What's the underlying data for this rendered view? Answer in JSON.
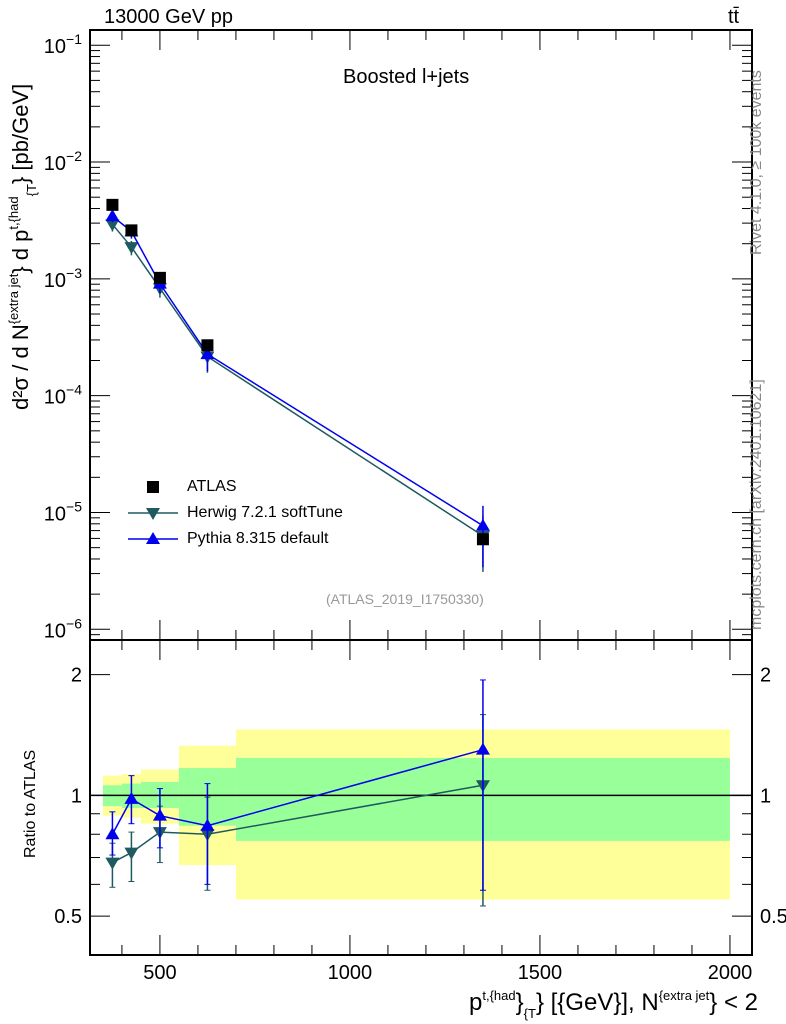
{
  "header": {
    "energy": "13000 GeV pp",
    "process": "tt̄"
  },
  "side": {
    "rivet": "Rivet 4.1.0, ≥ 100k events",
    "mcplots": "mcplots.cern.ch [arXiv:2401.10621]"
  },
  "colors": {
    "atlas": "#000000",
    "herwig": "#1e5a60",
    "pythia": "#0000ee",
    "band_inner": "#99ff99",
    "band_outer": "#ffff99"
  },
  "chart_data": [
    {
      "type": "line",
      "title": "Boosted l+jets",
      "analysis": "(ATLAS_2019_I1750330)",
      "ylabel": {
        "main": "d²σ / d N",
        "sup1": "{extra jet",
        "mid": "} d p",
        "sup2": "t,{had",
        "sub2": "{T",
        "end": "} [pb/GeV]"
      },
      "yscale": "log",
      "ylim": [
        8.1e-07,
        0.135
      ],
      "xlim": [
        316,
        2058
      ],
      "yticks": [
        {
          "v": 0.1,
          "b": "10",
          "e": "−1"
        },
        {
          "v": 0.01,
          "b": "10",
          "e": "−2"
        },
        {
          "v": 0.001,
          "b": "10",
          "e": "−3"
        },
        {
          "v": 0.0001,
          "b": "10",
          "e": "−4"
        },
        {
          "v": 1e-05,
          "b": "10",
          "e": "−5"
        },
        {
          "v": 1e-06,
          "b": "10",
          "e": "−6"
        }
      ],
      "legend_position": "bottom-left",
      "x": [
        375,
        425,
        500,
        625,
        1350
      ],
      "series": [
        {
          "name": "ATLAS",
          "marker": "square",
          "values": [
            0.0043,
            0.0026,
            0.00102,
            0.00027,
            5.9e-06
          ]
        },
        {
          "name": "Herwig 7.2.1 softTune",
          "marker": "triangle-down",
          "values": [
            0.00293,
            0.00187,
            0.00083,
            0.000216,
            6.3e-06
          ],
          "err_lo": [
            0.00254,
            0.00159,
            0.00069,
            0.000157,
            3.1e-06
          ],
          "err_hi": [
            0.00327,
            0.00211,
            0.00096,
            0.000267,
            9.4e-06
          ]
        },
        {
          "name": "Pythia 8.315 default",
          "marker": "triangle-up",
          "values": [
            0.00344,
            0.00255,
            0.00091,
            0.000227,
            7.7e-06
          ],
          "err_lo": [
            0.00305,
            0.00221,
            0.00075,
            0.000162,
            3.4e-06
          ],
          "err_hi": [
            0.00391,
            0.00291,
            0.00106,
            0.000289,
            1.14e-05
          ]
        }
      ]
    },
    {
      "type": "line",
      "ylabel": "Ratio to ATLAS",
      "xlabel": {
        "p": "p",
        "sup1": "t,{had",
        "mid1": "}",
        "sub1": "{T",
        "mid2": "} [{GeV}], N",
        "sup2": "{extra jet",
        "end": "} < 2"
      },
      "yscale": "log",
      "ylim": [
        0.4,
        2.44
      ],
      "xlim": [
        316,
        2058
      ],
      "yticks": [
        {
          "v": 0.5,
          "label": "0.5"
        },
        {
          "v": 1,
          "label": "1"
        },
        {
          "v": 2,
          "label": "2"
        }
      ],
      "xticks": [
        {
          "v": 500,
          "label": "500"
        },
        {
          "v": 1000,
          "label": "1000"
        },
        {
          "v": 1500,
          "label": "1500"
        },
        {
          "v": 2000,
          "label": "2000"
        }
      ],
      "bands": [
        {
          "x0": 350,
          "x1": 400,
          "inner": [
            0.94,
            1.06
          ],
          "outer": [
            0.89,
            1.12
          ]
        },
        {
          "x0": 400,
          "x1": 450,
          "inner": [
            0.93,
            1.07
          ],
          "outer": [
            0.88,
            1.13
          ]
        },
        {
          "x0": 450,
          "x1": 550,
          "inner": [
            0.93,
            1.08
          ],
          "outer": [
            0.85,
            1.16
          ]
        },
        {
          "x0": 550,
          "x1": 700,
          "inner": [
            0.84,
            1.17
          ],
          "outer": [
            0.67,
            1.33
          ]
        },
        {
          "x0": 700,
          "x1": 2000,
          "inner": [
            0.77,
            1.24
          ],
          "outer": [
            0.55,
            1.46
          ]
        }
      ],
      "x": [
        375,
        425,
        500,
        625,
        1350
      ],
      "series": [
        {
          "name": "Herwig 7.2.1 softTune",
          "values": [
            0.68,
            0.72,
            0.81,
            0.8,
            1.06
          ],
          "err_lo": [
            0.59,
            0.61,
            0.68,
            0.58,
            0.53
          ],
          "err_hi": [
            0.76,
            0.81,
            0.94,
            0.99,
            1.59
          ]
        },
        {
          "name": "Pythia 8.315 default",
          "values": [
            0.8,
            0.98,
            0.89,
            0.84,
            1.3
          ],
          "err_lo": [
            0.71,
            0.85,
            0.74,
            0.6,
            0.58
          ],
          "err_hi": [
            0.91,
            1.12,
            1.04,
            1.07,
            1.94
          ]
        }
      ]
    }
  ]
}
